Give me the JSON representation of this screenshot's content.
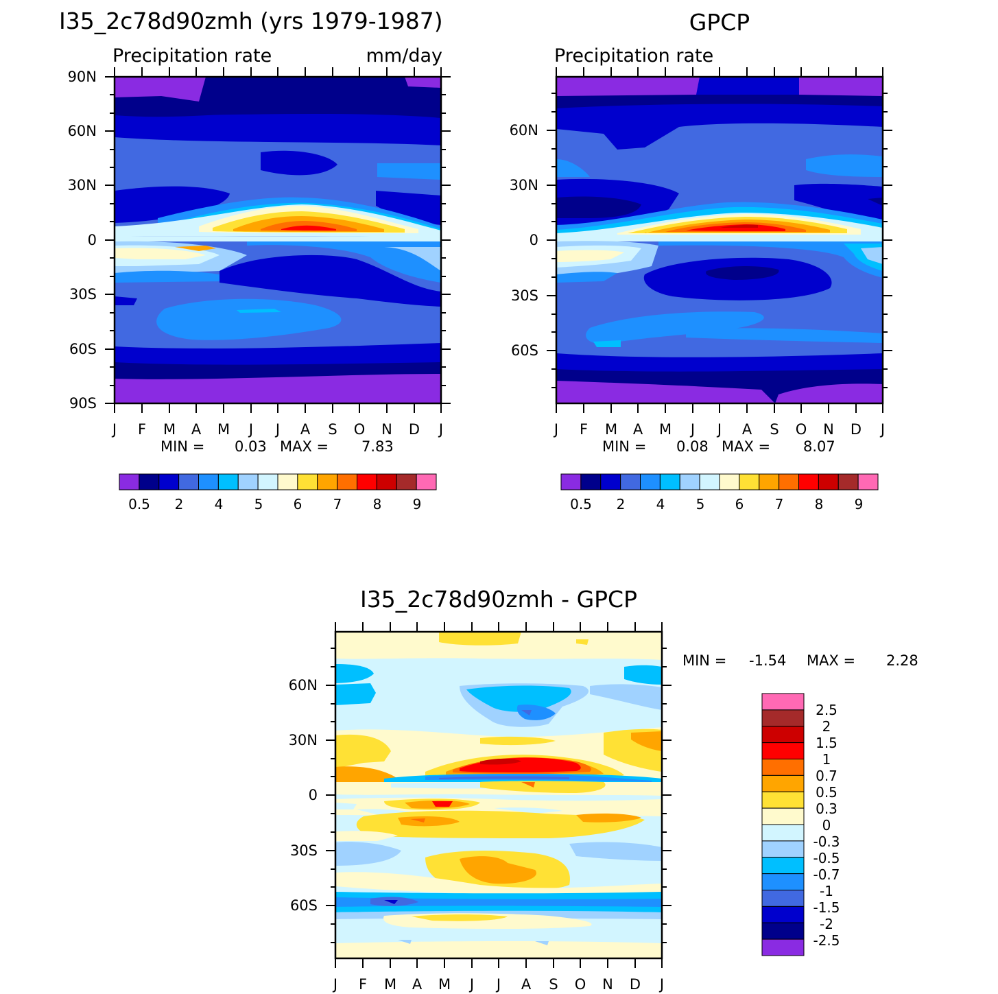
{
  "chart_data": [
    {
      "type": "heatmap",
      "title": "I35_2c78d90zmh (yrs 1979-1987)",
      "subtitle": "Precipitation rate",
      "units": "mm/day",
      "x_ticklabels": [
        "J",
        "F",
        "M",
        "A",
        "M",
        "J",
        "J",
        "A",
        "S",
        "O",
        "N",
        "D",
        "J"
      ],
      "y_ticklabels": [
        "90N",
        "60N",
        "30N",
        "0",
        "30S",
        "60S",
        "90S"
      ],
      "y_values": [
        90,
        60,
        30,
        0,
        -30,
        -60,
        -90
      ],
      "min_label": "MIN =",
      "min_value": "0.03",
      "max_label": "MAX =",
      "max_value": "7.83",
      "colorbar_labels": [
        "0.5",
        "2",
        "4",
        "5",
        "6",
        "7",
        "8",
        "9"
      ]
    },
    {
      "type": "heatmap",
      "title": "GPCP",
      "subtitle": "Precipitation rate",
      "x_ticklabels": [
        "J",
        "F",
        "M",
        "A",
        "M",
        "J",
        "J",
        "A",
        "S",
        "O",
        "N",
        "D",
        "J"
      ],
      "y_ticklabels": [
        "60N",
        "30N",
        "0",
        "30S",
        "60S"
      ],
      "y_values": [
        60,
        30,
        0,
        -30,
        -60
      ],
      "min_label": "MIN =",
      "min_value": "0.08",
      "max_label": "MAX =",
      "max_value": "8.07",
      "colorbar_labels": [
        "0.5",
        "2",
        "4",
        "5",
        "6",
        "7",
        "8",
        "9"
      ]
    },
    {
      "type": "heatmap",
      "title": "I35_2c78d90zmh - GPCP",
      "x_ticklabels": [
        "J",
        "F",
        "M",
        "A",
        "M",
        "J",
        "J",
        "A",
        "S",
        "O",
        "N",
        "D",
        "J"
      ],
      "y_ticklabels": [
        "60N",
        "30N",
        "0",
        "30S",
        "60S"
      ],
      "y_values": [
        60,
        30,
        0,
        -30,
        -60
      ],
      "min_label": "MIN =",
      "min_value": "-1.54",
      "max_label": "MAX =",
      "max_value": "2.28",
      "colorbar_labels": [
        "2.5",
        "2",
        "1.5",
        "1",
        "0.7",
        "0.5",
        "0.3",
        "0",
        "-0.3",
        "-0.5",
        "-0.7",
        "-1",
        "-1.5",
        "-2",
        "-2.5"
      ]
    }
  ],
  "colors": {
    "precip_scale": [
      "#8a2be2",
      "#00008b",
      "#0000cd",
      "#4169e1",
      "#1e90ff",
      "#00bfff",
      "#a0d2ff",
      "#d2f5ff",
      "#fffacd",
      "#ffe135",
      "#ffa500",
      "#ff6f00",
      "#ff0000",
      "#cd0000",
      "#a52a2a",
      "#ff69b4"
    ],
    "diff_scale": [
      "#ff69b4",
      "#a52a2a",
      "#cd0000",
      "#ff0000",
      "#ff6f00",
      "#ffa500",
      "#ffe135",
      "#fffacd",
      "#d2f5ff",
      "#a0d2ff",
      "#00bfff",
      "#1e90ff",
      "#4169e1",
      "#0000cd",
      "#00008b",
      "#8a2be2"
    ]
  }
}
